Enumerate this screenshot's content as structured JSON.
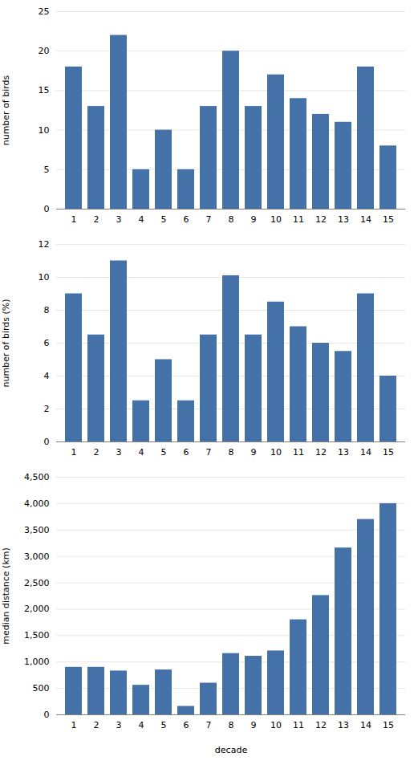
{
  "chart_data": [
    {
      "type": "bar",
      "categories": [
        1,
        2,
        3,
        4,
        5,
        6,
        7,
        8,
        9,
        10,
        11,
        12,
        13,
        14,
        15
      ],
      "values": [
        18,
        13,
        22,
        5,
        10,
        5,
        13,
        20,
        13,
        17,
        14,
        12,
        11,
        18,
        8
      ],
      "color": "#4472a8",
      "ylabel": "number of birds",
      "ylim": [
        0,
        25
      ],
      "yticks": [
        0,
        5,
        10,
        15,
        20,
        25
      ],
      "grid": true
    },
    {
      "type": "bar",
      "categories": [
        1,
        2,
        3,
        4,
        5,
        6,
        7,
        8,
        9,
        10,
        11,
        12,
        13,
        14,
        15
      ],
      "values": [
        9.0,
        6.5,
        11.0,
        2.5,
        5.0,
        2.5,
        6.5,
        10.1,
        6.5,
        8.5,
        7.0,
        6.0,
        5.5,
        9.0,
        4.0
      ],
      "color": "#4472a8",
      "ylabel": "number of birds (%)",
      "ylim": [
        0,
        12
      ],
      "yticks": [
        0,
        2,
        4,
        6,
        8,
        10,
        12
      ],
      "grid": true
    },
    {
      "type": "bar",
      "categories": [
        1,
        2,
        3,
        4,
        5,
        6,
        7,
        8,
        9,
        10,
        11,
        12,
        13,
        14,
        15
      ],
      "values": [
        900,
        900,
        830,
        560,
        850,
        160,
        600,
        1160,
        1110,
        1210,
        1800,
        2260,
        3160,
        3700,
        4000
      ],
      "color": "#4472a8",
      "xlabel": "decade",
      "ylabel": "median distance (km)",
      "ylim": [
        0,
        4500
      ],
      "yticks": [
        0,
        500,
        1000,
        1500,
        2000,
        2500,
        3000,
        3500,
        4000,
        4500
      ],
      "grid": true
    }
  ]
}
